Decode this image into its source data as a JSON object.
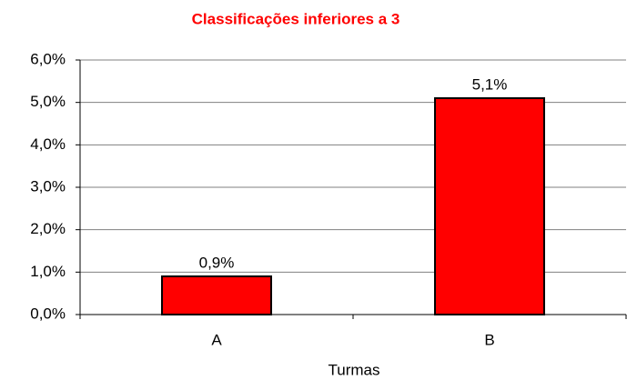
{
  "chart_data": {
    "type": "bar",
    "title": "Classificações inferiores a 3",
    "categories": [
      "A",
      "B"
    ],
    "values": [
      0.9,
      5.1
    ],
    "value_labels": [
      "0,9%",
      "5,1%"
    ],
    "color": "#ff0000",
    "x_label": "Turmas",
    "ylim": [
      0,
      6
    ],
    "yticks": [
      {
        "value": 0,
        "label": "0,0%"
      },
      {
        "value": 1,
        "label": "1,0%"
      },
      {
        "value": 2,
        "label": "2,0%"
      },
      {
        "value": 3,
        "label": "3,0%"
      },
      {
        "value": 4,
        "label": "4,0%"
      },
      {
        "value": 5,
        "label": "5,0%"
      },
      {
        "value": 6,
        "label": "6,0%"
      }
    ],
    "grid": true
  }
}
